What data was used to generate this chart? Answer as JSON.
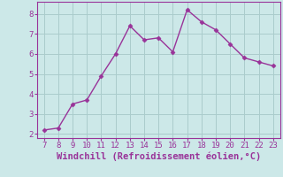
{
  "x": [
    7,
    8,
    9,
    10,
    11,
    12,
    13,
    14,
    15,
    16,
    17,
    18,
    19,
    20,
    21,
    22,
    23
  ],
  "y": [
    2.2,
    2.3,
    3.5,
    3.7,
    4.9,
    6.0,
    7.4,
    6.7,
    6.8,
    6.1,
    8.2,
    7.6,
    7.2,
    6.5,
    5.8,
    5.6,
    5.4
  ],
  "line_color": "#993399",
  "marker": "D",
  "marker_size": 2.5,
  "line_width": 1.0,
  "xlabel": "Windchill (Refroidissement éolien,°C)",
  "xlabel_color": "#993399",
  "xlabel_fontsize": 7.5,
  "ylabel_ticks": [
    2,
    3,
    4,
    5,
    6,
    7,
    8
  ],
  "xtick_labels": [
    "7",
    "8",
    "9",
    "10",
    "11",
    "12",
    "13",
    "14",
    "15",
    "16",
    "17",
    "18",
    "19",
    "20",
    "21",
    "22",
    "23"
  ],
  "xlim": [
    6.5,
    23.5
  ],
  "ylim": [
    1.8,
    8.6
  ],
  "bg_color": "#cce8e8",
  "grid_color": "#aacccc",
  "tick_color": "#993399",
  "tick_fontsize": 6.5
}
